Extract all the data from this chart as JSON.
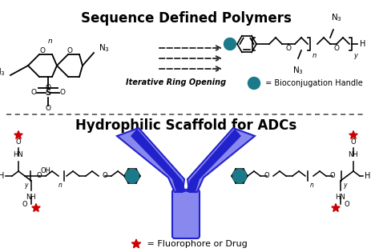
{
  "title_top": "Sequence Defined Polymers",
  "title_bottom": "Hydrophilic Scaffold for ADCs",
  "label_iterative": "Iterative Ring Opening",
  "label_bioconj": " = Bioconjugation Handle",
  "label_fluoro": " = Fluorophore or Drug",
  "bg_color": "#ffffff",
  "title_fontsize": 12,
  "antibody_color_light": "#8888ee",
  "antibody_color_dark": "#2222cc",
  "teal_dot_color": "#1a7a8a",
  "red_star_color": "#cc0000",
  "arrow_color": "#222222",
  "text_color": "#000000",
  "dashed_line_color": "#444444"
}
